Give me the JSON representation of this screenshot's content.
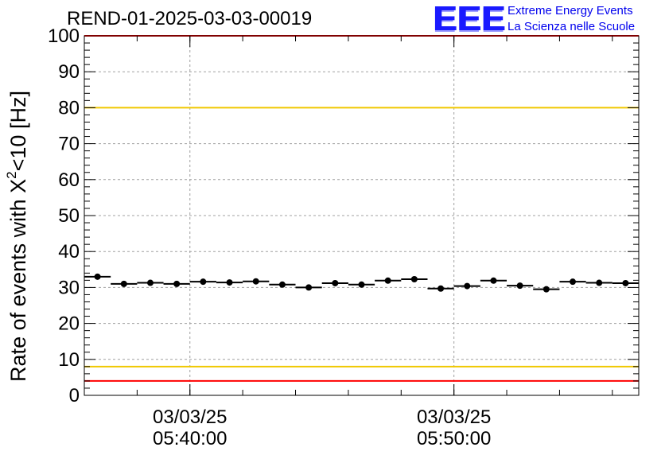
{
  "header": {
    "title": "REND-01-2025-03-03-00019",
    "logo_mark": "EEE",
    "logo_line1": "Extreme Energy Events",
    "logo_line2": "La Scienza nelle Scuole"
  },
  "colors": {
    "axis": "#000000",
    "grid": "#a0a0a0",
    "marker": "#000000",
    "red_limit": "#ff0000",
    "yellow_limit": "#f0c800",
    "logo": "#1a1aff"
  },
  "chart_data": {
    "type": "scatter",
    "title": "REND-01-2025-03-03-00019",
    "xlabel": "",
    "ylabel_main": "Rate of events with X",
    "ylabel_sup": "2",
    "ylabel_tail": "<10 [Hz]",
    "xlim": [
      0,
      21
    ],
    "ylim": [
      0,
      100
    ],
    "y_ticks": [
      0,
      10,
      20,
      30,
      40,
      50,
      60,
      70,
      80,
      90,
      100
    ],
    "x_ticks": [
      {
        "x": 4,
        "date": "03/03/25",
        "time": "05:40:00"
      },
      {
        "x": 14,
        "date": "03/03/25",
        "time": "05:50:00"
      }
    ],
    "grid": true,
    "x_halfwidth": 0.5,
    "x": [
      0.5,
      1.5,
      2.5,
      3.5,
      4.5,
      5.5,
      6.5,
      7.5,
      8.5,
      9.5,
      10.5,
      11.5,
      12.5,
      13.5,
      14.5,
      15.5,
      16.5,
      17.5,
      18.5,
      19.5,
      20.5
    ],
    "values": [
      33.0,
      31.0,
      31.3,
      31.0,
      31.6,
      31.4,
      31.7,
      30.8,
      30.0,
      31.2,
      30.8,
      31.9,
      32.3,
      29.7,
      30.4,
      31.9,
      30.5,
      29.5,
      31.6,
      31.3,
      31.2
    ],
    "reference_lines": [
      {
        "y": 100,
        "color": "red"
      },
      {
        "y": 80,
        "color": "yellow"
      },
      {
        "y": 8,
        "color": "yellow"
      },
      {
        "y": 4,
        "color": "red"
      }
    ]
  }
}
